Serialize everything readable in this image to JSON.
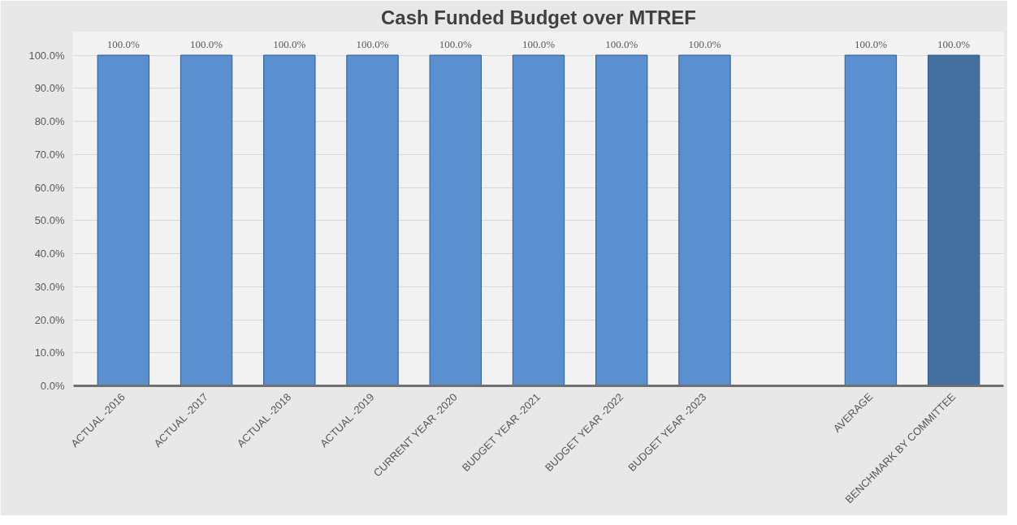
{
  "chart_data": {
    "type": "bar",
    "title": "Cash Funded Budget over MTREF",
    "categories": [
      "ACTUAL -2016",
      "ACTUAL -2017",
      "ACTUAL -2018",
      "ACTUAL -2019",
      "CURRENT YEAR -2020",
      "BUDGET YEAR -2021",
      "BUDGET YEAR -2022",
      "BUDGET YEAR -2023",
      null,
      "AVERAGE",
      "BENCHMARK BY COMMITTEE"
    ],
    "values": [
      100,
      100,
      100,
      100,
      100,
      100,
      100,
      100,
      null,
      100,
      100
    ],
    "value_labels": [
      "100.0%",
      "100.0%",
      "100.0%",
      "100.0%",
      "100.0%",
      "100.0%",
      "100.0%",
      "100.0%",
      null,
      "100.0%",
      "100.0%"
    ],
    "colors": [
      "#5a8fd0",
      "#5a8fd0",
      "#5a8fd0",
      "#5a8fd0",
      "#5a8fd0",
      "#5a8fd0",
      "#5a8fd0",
      "#5a8fd0",
      null,
      "#5a8fd0",
      "#44709f"
    ],
    "ylim": [
      0,
      100
    ],
    "yticks": [
      {
        "value": 0,
        "label": "0.0%"
      },
      {
        "value": 10,
        "label": "10.0%"
      },
      {
        "value": 20,
        "label": "20.0%"
      },
      {
        "value": 30,
        "label": "30.0%"
      },
      {
        "value": 40,
        "label": "40.0%"
      },
      {
        "value": 50,
        "label": "50.0%"
      },
      {
        "value": 60,
        "label": "60.0%"
      },
      {
        "value": 70,
        "label": "70.0%"
      },
      {
        "value": 80,
        "label": "80.0%"
      },
      {
        "value": 90,
        "label": "90.0%"
      },
      {
        "value": 100,
        "label": "100.0%"
      }
    ],
    "grid": "y"
  }
}
